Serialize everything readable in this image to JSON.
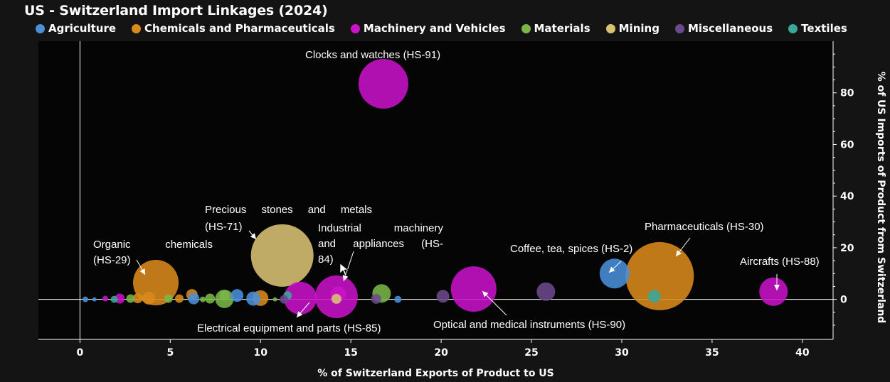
{
  "chart_data": {
    "type": "scatter",
    "title": "US - Switzerland Import Linkages (2024)",
    "xlabel": "% of Switzerland Exports of Product to US",
    "ylabel": "% of US Imports of Product from Switzerland",
    "xlim": [
      -2.3,
      41.7
    ],
    "ylim": [
      -15.5,
      100
    ],
    "x_ticks": [
      0,
      5,
      10,
      15,
      20,
      25,
      30,
      35,
      40
    ],
    "y_ticks": [
      0,
      20,
      40,
      60,
      80
    ],
    "y_axis_position": "right",
    "legend_position": "top",
    "grid": false,
    "categories": [
      {
        "name": "Agriculture",
        "color": "#4a90d9"
      },
      {
        "name": "Chemicals and Pharmaceuticals",
        "color": "#d98a1c"
      },
      {
        "name": "Machinery and Vehicles",
        "color": "#c912c9"
      },
      {
        "name": "Materials",
        "color": "#7ab648"
      },
      {
        "name": "Mining",
        "color": "#d9c373"
      },
      {
        "name": "Miscellaneous",
        "color": "#6b4a8c"
      },
      {
        "name": "Textiles",
        "color": "#3aa79a"
      }
    ],
    "points": [
      {
        "x": 16.8,
        "y": 83.5,
        "size": 35,
        "category": "Machinery and Vehicles",
        "label": "Clocks and watches (HS-91)"
      },
      {
        "x": 11.2,
        "y": 17,
        "size": 44,
        "category": "Mining",
        "label": "Precious stones and metals (HS-71)"
      },
      {
        "x": 4.2,
        "y": 6.5,
        "size": 32,
        "category": "Chemicals and Pharmaceuticals",
        "label": "Organic chemicals (HS-29)"
      },
      {
        "x": 32.1,
        "y": 9,
        "size": 48,
        "category": "Chemicals and Pharmaceuticals",
        "label": "Pharmaceuticals (HS-30)"
      },
      {
        "x": 29.6,
        "y": 10,
        "size": 21,
        "category": "Agriculture",
        "label": "Coffee, tea, spices (HS-2)"
      },
      {
        "x": 38.4,
        "y": 3,
        "size": 20,
        "category": "Machinery and Vehicles",
        "label": "Aircrafts (HS-88)"
      },
      {
        "x": 21.8,
        "y": 4,
        "size": 32,
        "category": "Machinery and Vehicles",
        "label": "Optical and medical instruments (HS-90)"
      },
      {
        "x": 14.2,
        "y": 1,
        "size": 30,
        "category": "Machinery and Vehicles",
        "label": "Industrial machinery and appliances (HS-84)"
      },
      {
        "x": 12.2,
        "y": 0.5,
        "size": 23,
        "category": "Machinery and Vehicles",
        "label": "Electrical equipment and parts (HS-85)"
      },
      {
        "x": 25.8,
        "y": 3,
        "size": 13,
        "category": "Miscellaneous",
        "label": ""
      },
      {
        "x": 31.8,
        "y": 1.2,
        "size": 9,
        "category": "Textiles",
        "label": ""
      },
      {
        "x": 16.7,
        "y": 2.3,
        "size": 13,
        "category": "Materials",
        "label": ""
      },
      {
        "x": 14.3,
        "y": 2,
        "size": 11,
        "category": "Machinery and Vehicles",
        "label": ""
      },
      {
        "x": 14.2,
        "y": 0.2,
        "size": 7,
        "category": "Mining",
        "label": ""
      },
      {
        "x": 16.4,
        "y": 0.2,
        "size": 7,
        "category": "Miscellaneous",
        "label": ""
      },
      {
        "x": 17.6,
        "y": 0,
        "size": 5,
        "category": "Agriculture",
        "label": ""
      },
      {
        "x": 20.1,
        "y": 1.2,
        "size": 9,
        "category": "Miscellaneous",
        "label": ""
      },
      {
        "x": 10.0,
        "y": 0.5,
        "size": 11,
        "category": "Chemicals and Pharmaceuticals",
        "label": ""
      },
      {
        "x": 9.6,
        "y": 0.3,
        "size": 10,
        "category": "Agriculture",
        "label": ""
      },
      {
        "x": 8.7,
        "y": 1.5,
        "size": 9,
        "category": "Agriculture",
        "label": ""
      },
      {
        "x": 8.0,
        "y": 0.2,
        "size": 13,
        "category": "Materials",
        "label": ""
      },
      {
        "x": 8.0,
        "y": 1.5,
        "size": 7,
        "category": "Materials",
        "label": ""
      },
      {
        "x": 11.5,
        "y": 1.5,
        "size": 6,
        "category": "Textiles",
        "label": ""
      },
      {
        "x": 11.3,
        "y": 0,
        "size": 6,
        "category": "Miscellaneous",
        "label": ""
      },
      {
        "x": 6.2,
        "y": 1.8,
        "size": 8,
        "category": "Chemicals and Pharmaceuticals",
        "label": ""
      },
      {
        "x": 6.3,
        "y": 0.3,
        "size": 8,
        "category": "Agriculture",
        "label": ""
      },
      {
        "x": 7.2,
        "y": 0.3,
        "size": 7,
        "category": "Materials",
        "label": ""
      },
      {
        "x": 5.5,
        "y": 0.3,
        "size": 6,
        "category": "Chemicals and Pharmaceuticals",
        "label": ""
      },
      {
        "x": 4.9,
        "y": 0.3,
        "size": 6,
        "category": "Materials",
        "label": ""
      },
      {
        "x": 3.8,
        "y": 0.5,
        "size": 9,
        "category": "Chemicals and Pharmaceuticals",
        "label": ""
      },
      {
        "x": 3.2,
        "y": 0.4,
        "size": 7,
        "category": "Chemicals and Pharmaceuticals",
        "label": ""
      },
      {
        "x": 2.8,
        "y": 0.3,
        "size": 6,
        "category": "Materials",
        "label": ""
      },
      {
        "x": 2.2,
        "y": 0.3,
        "size": 7,
        "category": "Machinery and Vehicles",
        "label": ""
      },
      {
        "x": 1.9,
        "y": 0,
        "size": 5,
        "category": "Textiles",
        "label": ""
      },
      {
        "x": 1.4,
        "y": 0.3,
        "size": 4,
        "category": "Machinery and Vehicles",
        "label": ""
      },
      {
        "x": 0.8,
        "y": 0,
        "size": 3,
        "category": "Agriculture",
        "label": ""
      },
      {
        "x": 0.3,
        "y": 0,
        "size": 4,
        "category": "Agriculture",
        "label": ""
      },
      {
        "x": 10.8,
        "y": 0,
        "size": 3,
        "category": "Materials",
        "label": ""
      },
      {
        "x": 6.8,
        "y": 0,
        "size": 4,
        "category": "Materials",
        "label": ""
      }
    ],
    "annotations": [
      {
        "lines": [
          "Clocks and watches (HS-91)"
        ]
      },
      {
        "lines": [
          "Precious stones and metals",
          "(HS-71)"
        ]
      },
      {
        "lines": [
          "Organic chemicals",
          "(HS-29)"
        ]
      },
      {
        "lines": [
          "Industrial machinery",
          "and appliances (HS-",
          "84)"
        ]
      },
      {
        "lines": [
          "Electrical equipment and parts (HS-85)"
        ]
      },
      {
        "lines": [
          "Optical and medical instruments (HS-90)"
        ]
      },
      {
        "lines": [
          "Coffee, tea, spices (HS-2)"
        ]
      },
      {
        "lines": [
          "Pharmaceuticals (HS-30)"
        ]
      },
      {
        "lines": [
          "Aircrafts (HS-88)"
        ]
      }
    ]
  }
}
